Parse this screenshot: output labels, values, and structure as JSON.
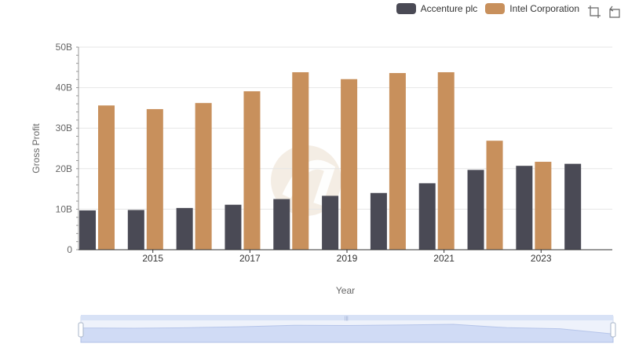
{
  "legend": {
    "items": [
      {
        "label": "Accenture plc",
        "color": "#4a4a55"
      },
      {
        "label": "Intel Corporation",
        "color": "#c8905c"
      }
    ]
  },
  "toolbox": {
    "icons": [
      "zoom-icon",
      "restore-icon"
    ]
  },
  "chart_data": {
    "type": "bar",
    "categories": [
      "2014",
      "2015",
      "2016",
      "2017",
      "2018",
      "2019",
      "2020",
      "2021",
      "2022",
      "2023",
      "2024"
    ],
    "x_tick_labels": [
      "2015",
      "2017",
      "2019",
      "2021",
      "2023"
    ],
    "series": [
      {
        "name": "Accenture plc",
        "color": "#4a4a55",
        "values": [
          9.7,
          9.8,
          10.3,
          11.1,
          12.5,
          13.3,
          14.0,
          16.4,
          19.7,
          20.7,
          21.2
        ]
      },
      {
        "name": "Intel Corporation",
        "color": "#c8905c",
        "values": [
          35.6,
          34.7,
          36.2,
          39.1,
          43.8,
          42.1,
          43.6,
          43.8,
          26.9,
          21.7,
          null
        ]
      }
    ],
    "y_ticks": [
      "0",
      "10B",
      "20B",
      "30B",
      "40B",
      "50B"
    ],
    "ylim": [
      0,
      50
    ],
    "xlabel": "Year",
    "ylabel": "Gross Profit",
    "grid": true,
    "legend_position": "top-right",
    "data_zoom": true
  }
}
